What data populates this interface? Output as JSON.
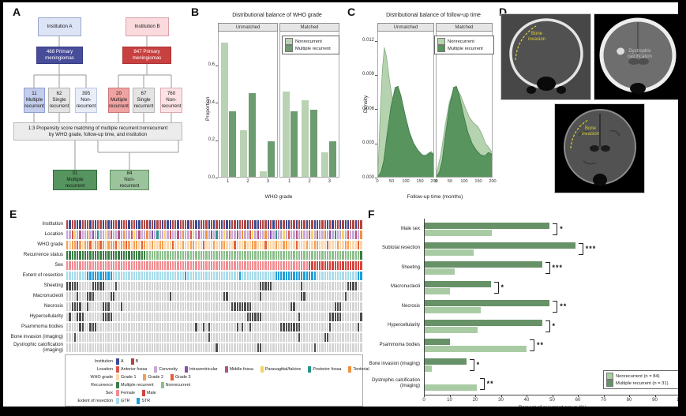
{
  "panels": {
    "a": "A",
    "b": "B",
    "c": "C",
    "d": "D",
    "e": "E",
    "f": "F"
  },
  "panelA": {
    "inst_a": "Institution A",
    "inst_b": "Institution B",
    "primary_a": "468 Primary\nmeningiomas",
    "primary_b": "847 Primary\nmeningiomas",
    "children": [
      {
        "text": "11\nMultiple\nrecurrent",
        "color": "#c3cdec"
      },
      {
        "text": "62\nSingle\nrecurrent",
        "color": "#e4e4e4"
      },
      {
        "text": "395\nNon-\nrecurrent",
        "color": "#e9edf8"
      },
      {
        "text": "20\nMultiple\nrecurrent",
        "color": "#efa3a3"
      },
      {
        "text": "67\nSingle\nrecurrent",
        "color": "#e4e4e4"
      },
      {
        "text": "760\nNon-\nrecurrent",
        "color": "#fbe3e5"
      }
    ],
    "psm": "1:3 Propensity score matching of multiple recurrent:nonrecurrent\nby WHO grade, follow-up time, and institution",
    "matched_mr": "31\nMultiple\nrecurrent",
    "matched_nr": "84\nNon-\nrecurrent"
  },
  "panelD": {
    "annotations": {
      "ct_bone": "Bone\ninvasion",
      "ct_brain": "Dystrophic\ncalcification",
      "mri": "Bone\ninvasion"
    }
  },
  "chart_data": [
    {
      "id": "who_grade_balance",
      "type": "bar",
      "title": "Distributional balance of WHO grade",
      "facets": [
        "Unmatched",
        "Matched"
      ],
      "categories": [
        "1",
        "2",
        "3"
      ],
      "xlabel": "WHO grade",
      "ylabel": "Proportion",
      "yticks": [
        0.0,
        0.2,
        0.4,
        0.6
      ],
      "ymax": 0.78,
      "legend": [
        "Nonrecurrent",
        "Multiple recurrent"
      ],
      "colors": {
        "nonrecurrent": "#b9d2b4",
        "multiple_recurrent": "#6d9c70"
      },
      "series": {
        "Unmatched": {
          "nonrecurrent": [
            0.72,
            0.25,
            0.03
          ],
          "multiple_recurrent": [
            0.35,
            0.45,
            0.19
          ]
        },
        "Matched": {
          "nonrecurrent": [
            0.46,
            0.41,
            0.13
          ],
          "multiple_recurrent": [
            0.35,
            0.36,
            0.19
          ]
        }
      }
    },
    {
      "id": "followup_balance",
      "type": "area",
      "title": "Distributional balance of follow-up time",
      "facets": [
        "Unmatched",
        "Matched"
      ],
      "xlabel": "Follow-up time (months)",
      "ylabel": "Density",
      "xticks": [
        0,
        50,
        100,
        150,
        200
      ],
      "yticks": [
        "0.000",
        "0.003",
        "0.006",
        "0.009",
        "0.012"
      ],
      "xmax": 200,
      "ymax": 0.0128,
      "legend": [
        "Nonrecurrent",
        "Multiple recurrent"
      ],
      "colors": {
        "nonrecurrent": "#b5d3ae",
        "multiple_recurrent": "#58945e"
      },
      "curves": {
        "Unmatched": {
          "nonrecurrent": [
            [
              0,
              0.0008
            ],
            [
              8,
              0.006
            ],
            [
              15,
              0.0095
            ],
            [
              22,
              0.0114
            ],
            [
              30,
              0.0105
            ],
            [
              40,
              0.0085
            ],
            [
              55,
              0.0062
            ],
            [
              70,
              0.0047
            ],
            [
              85,
              0.0038
            ],
            [
              100,
              0.0031
            ],
            [
              115,
              0.0027
            ],
            [
              130,
              0.0023
            ],
            [
              145,
              0.002
            ],
            [
              160,
              0.0019
            ],
            [
              175,
              0.0021
            ],
            [
              188,
              0.0023
            ],
            [
              195,
              0.002
            ],
            [
              200,
              0.0017
            ]
          ],
          "multiple_recurrent": [
            [
              0,
              0.0001
            ],
            [
              10,
              0.0005
            ],
            [
              20,
              0.0015
            ],
            [
              30,
              0.0035
            ],
            [
              45,
              0.0062
            ],
            [
              60,
              0.0079
            ],
            [
              70,
              0.008
            ],
            [
              80,
              0.0072
            ],
            [
              95,
              0.0055
            ],
            [
              110,
              0.004
            ],
            [
              125,
              0.003
            ],
            [
              140,
              0.0024
            ],
            [
              155,
              0.002
            ],
            [
              170,
              0.0019
            ],
            [
              182,
              0.0022
            ],
            [
              192,
              0.0021
            ],
            [
              200,
              0.0016
            ]
          ]
        },
        "Matched": {
          "nonrecurrent": [
            [
              0,
              0.0004
            ],
            [
              15,
              0.002
            ],
            [
              30,
              0.0045
            ],
            [
              45,
              0.0066
            ],
            [
              60,
              0.0077
            ],
            [
              72,
              0.0078
            ],
            [
              85,
              0.0072
            ],
            [
              100,
              0.0062
            ],
            [
              115,
              0.0053
            ],
            [
              130,
              0.0048
            ],
            [
              145,
              0.0045
            ],
            [
              160,
              0.0038
            ],
            [
              172,
              0.003
            ],
            [
              185,
              0.0026
            ],
            [
              195,
              0.0022
            ],
            [
              200,
              0.002
            ]
          ],
          "multiple_recurrent": [
            [
              0,
              0.0001
            ],
            [
              10,
              0.0005
            ],
            [
              20,
              0.0015
            ],
            [
              30,
              0.0035
            ],
            [
              45,
              0.0062
            ],
            [
              60,
              0.0079
            ],
            [
              70,
              0.008
            ],
            [
              80,
              0.0072
            ],
            [
              95,
              0.0055
            ],
            [
              110,
              0.004
            ],
            [
              125,
              0.003
            ],
            [
              140,
              0.0024
            ],
            [
              155,
              0.002
            ],
            [
              170,
              0.0019
            ],
            [
              182,
              0.0022
            ],
            [
              192,
              0.0021
            ],
            [
              200,
              0.0016
            ]
          ]
        }
      }
    },
    {
      "id": "oncoprint",
      "type": "heatmap",
      "n_columns": 115,
      "palettes": {
        "institution": {
          "A": "#3b4992",
          "B": "#b04543"
        },
        "location": {
          "a": "#d9544d",
          "c": "#c7a9d9",
          "i": "#8653a7",
          "m": "#b25383",
          "p": "#f8d35c",
          "o": "#28948c",
          "t": "#f0913f"
        },
        "who": {
          "1": "#fbd8ad",
          "2": "#f69e54",
          "3": "#e65f38"
        },
        "rec": {
          "M": "#3c7d46",
          "N": "#8cbe8c"
        },
        "sex": {
          "F": "#f28d92",
          "M": "#d8423c"
        },
        "extent": {
          "G": "#a8dcea",
          "S": "#1f9ed9"
        },
        "binary": {
          "D": "#4b4b4b",
          "L": "#d4d4d4"
        }
      },
      "rows": [
        {
          "label": "Institution",
          "palette": "institution",
          "seq": "BABBAABBBABABBABAABBABB"
        },
        {
          "label": "Location",
          "palette": "location",
          "seq": "ccapcmcctcicoccpcaccmct"
        },
        {
          "label": "WHO grade",
          "palette": "who",
          "seq": "2122321223122321222312232122132112112211131112112211131112112211131112112211131112112211131112112211131112112211131"
        },
        {
          "label": "Recurrence status",
          "palette": "rec",
          "seq": "MMMMMMMMMMMMMMMMMMMMMMMMMMMMMMMNNNNNNNNNNNNNNNNNNNNNNNNNNNNNNNNNNNNNNNNNNNNNNNNNNNNNNNNNNNNNNNNNNNNNNNNNNNNNNNNNNN"
        },
        {
          "label": "Sex",
          "palette": "sex",
          "seq": "FFFFFFFFFFFFFFFFFFFFFFFFFFFFFFFFFFFFFFFFFFFFFFFFFFFFFFFFFFFFFFFFFFFFFFFFFFFFFFFFFFFFFFFFFFFFFFMMMMMMMMMMMMMMMMMMMMM"
        },
        {
          "label": "Extent of resection",
          "palette": "extent",
          "seq": "GGGGGGGGSSSSSSSSSSGGGGGGGGGGGGGGGGGGGGGGGGGGGGSGGGGGGGGGGGGGGGGGGGGSGGGGGGGGGGGGGSSSSSSSSSSSSSSSSGGGGGGGGGGGGGGGGSSS"
        },
        {
          "label": "Sheeting",
          "palette": "binary",
          "seq": "DDDDDLLLLLDDDDDLLLLDLLLLLLLLLLLLLLLLLLLLLLLLLLLLLLLLLLLLLLLLLLLLLLLLLLLLLLLDDDDDLLLLLLLLLLLDLLLLLLLLLLLLLLLLLDDDDLL"
        },
        {
          "label": "Macronucleoli",
          "palette": "binary",
          "seq": "LLLLDLLLDDDLLLLLLDDLLLLLLLLLLLLLLLLLLLLLDLLLLLLLLLLLLLLLLLLLLDDLLLLLLLLLLLLDLLLLLLLLLLLLLLLDDLLLLLLLLLLLLLLLDLLLLLL"
        },
        {
          "label": "Necrosis",
          "palette": "binary",
          "seq": "LLDDDDLLDLLLLLDDDLLLLDLLLLLLLLLLLLLLLLLLLLLLLLLLLLLLLLLLLLLLLLLLDDDDDDDDLLLLLLLLLLLLLLLDDLLLLLLLLLLLLLLLDDDLLLLLL"
        },
        {
          "label": "Hypercellularity",
          "palette": "binary",
          "seq": "LDLLDDDLLLLLLLDDDDLLLLLLLLLLLLLLLLLLLLLLLLLLLLLLLLLLLLLLLLLLLLLLLLLLLLDDDDDDLLLLLLLLLLLLLLDLLLLLLLLLLLDDDDDLLLLLL"
        },
        {
          "label": "Psammoma bodies",
          "palette": "binary",
          "seq": "LLLLLDDLLDDDLLLLLLLLLLLLLLLLLLLLLLLLLLLLLLLLLLLLLLDLLDLDLLLLLLLLLLDLDLLDLLLLLLLLLLLDDDDDDDDLLLLLLLLLLLDLLLLLLLLLLD"
        },
        {
          "label": "Bone invasion (imaging)",
          "palette": "binary",
          "seq": "LLLDLLLLLLLLLLLLLLLLLLLLLLLLLLLLLLLLLLLLLLLLLLLLLLLLLLLDLLLLLLLLLLLLLLLLLLLLLLLLLLLLLLLLLLDLLLLLLLLLDDLLLLLLLLLLLL"
        },
        {
          "label": "Dystrophic calcification\n(imaging)",
          "palette": "binary",
          "seq": "LLLLLLLLLLLLLLLLLLLLLLLLLLLLLLLLLLLLLLLLLLLLLLLLLLLLLLLLLLDLLLLLLLLLLLLLLLDDLLLLLLLLLLLLLLLLLLLLDLLLLLLLLLLLLLLLLL"
        }
      ],
      "legend": [
        {
          "label": "Institution",
          "items": [
            {
              "label": "A",
              "color": "#3b4992"
            },
            {
              "label": "B",
              "color": "#b04543"
            }
          ]
        },
        {
          "label": "Location",
          "items": [
            {
              "label": "Anterior fossa",
              "color": "#d9544d"
            },
            {
              "label": "Convexity",
              "color": "#c7a9d9"
            },
            {
              "label": "Intraventricular",
              "color": "#8653a7"
            },
            {
              "label": "Middle fossa",
              "color": "#b25383"
            },
            {
              "label": "Parasagittal/falcine",
              "color": "#f8d35c"
            },
            {
              "label": "Posterior fossa",
              "color": "#28948c"
            },
            {
              "label": "Tentorial",
              "color": "#f0913f"
            }
          ]
        },
        {
          "label": "WHO grade",
          "items": [
            {
              "label": "Grade 1",
              "color": "#fbd8ad"
            },
            {
              "label": "Grade 2",
              "color": "#f69e54"
            },
            {
              "label": "Grade 3",
              "color": "#e65f38"
            }
          ]
        },
        {
          "label": "Recurrence",
          "items": [
            {
              "label": "Multiple recurrent",
              "color": "#3c7d46"
            },
            {
              "label": "Nonrecurrent",
              "color": "#8cbe8c"
            }
          ]
        },
        {
          "label": "Sex",
          "items": [
            {
              "label": "Female",
              "color": "#f28d92"
            },
            {
              "label": "Male",
              "color": "#d8423c"
            }
          ]
        },
        {
          "label": "Extent of resection",
          "items": [
            {
              "label": "GTR",
              "color": "#a8dcea"
            },
            {
              "label": "STR",
              "color": "#1f9ed9"
            }
          ]
        }
      ]
    },
    {
      "id": "recurrent_features",
      "type": "bar",
      "orientation": "horizontal",
      "categories": [
        "Male sex",
        "Subtotal resection",
        "Sheeting",
        "Macronucleoli",
        "Necrosis",
        "Hypercellularity",
        "Psammoma bodies",
        "Bone invasion (imaging)",
        "Dystrophic calcification (imaging)"
      ],
      "series": [
        {
          "name": "Multiple recurrent (n = 31)",
          "color": "#679267",
          "values": [
            49,
            59,
            46,
            26,
            49,
            46,
            10,
            16.5,
            0
          ]
        },
        {
          "name": "Nonrecurrent (n = 84)",
          "color": "#a9cba4",
          "values": [
            26.5,
            19.5,
            12,
            10,
            22,
            21,
            40,
            3,
            20.5
          ]
        }
      ],
      "significance": [
        "*",
        "***",
        "***",
        "*",
        "**",
        "*",
        "**",
        "*",
        "**"
      ],
      "xlabel": "Percent of recurrent group (%)",
      "xticks": [
        0,
        10,
        20,
        30,
        40,
        50,
        60,
        70,
        80,
        90,
        100
      ],
      "xmax": 100,
      "legend_order": [
        "Nonrecurrent (n = 84)",
        "Multiple recurrent (n = 31)"
      ]
    }
  ]
}
